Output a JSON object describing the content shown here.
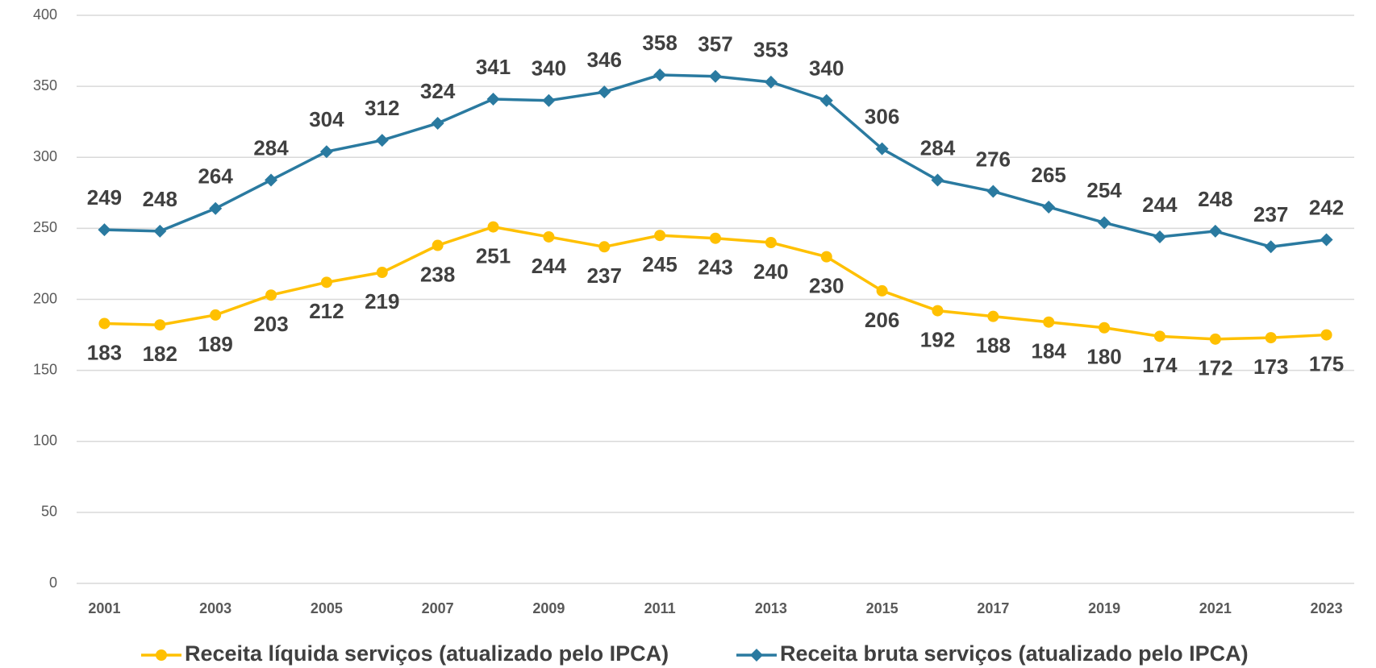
{
  "chart_data": {
    "type": "line",
    "categories": [
      "2001",
      null,
      "2003",
      null,
      "2005",
      null,
      "2007",
      null,
      "2009",
      null,
      "2011",
      null,
      "2013",
      null,
      "2015",
      null,
      "2017",
      null,
      "2019",
      null,
      "2021",
      null,
      "2023"
    ],
    "series": [
      {
        "name": "Receita líquida serviços (atualizado pelo IPCA)",
        "color": "#FFC000",
        "marker": "circle",
        "label_position": "below",
        "values": [
          183,
          182,
          189,
          203,
          212,
          219,
          238,
          251,
          244,
          237,
          245,
          243,
          240,
          230,
          206,
          192,
          188,
          184,
          180,
          174,
          172,
          173,
          175
        ]
      },
      {
        "name": "Receita bruta serviços (atualizado pelo IPCA)",
        "color": "#2A7AA0",
        "marker": "diamond",
        "label_position": "above",
        "values": [
          249,
          248,
          264,
          284,
          304,
          312,
          324,
          341,
          340,
          346,
          358,
          357,
          353,
          340,
          306,
          284,
          276,
          265,
          254,
          244,
          248,
          237,
          242
        ]
      }
    ],
    "ylim": [
      0,
      400
    ],
    "yticks": [
      0,
      50,
      100,
      150,
      200,
      250,
      300,
      350,
      400
    ],
    "grid": true,
    "legend": "bottom"
  }
}
